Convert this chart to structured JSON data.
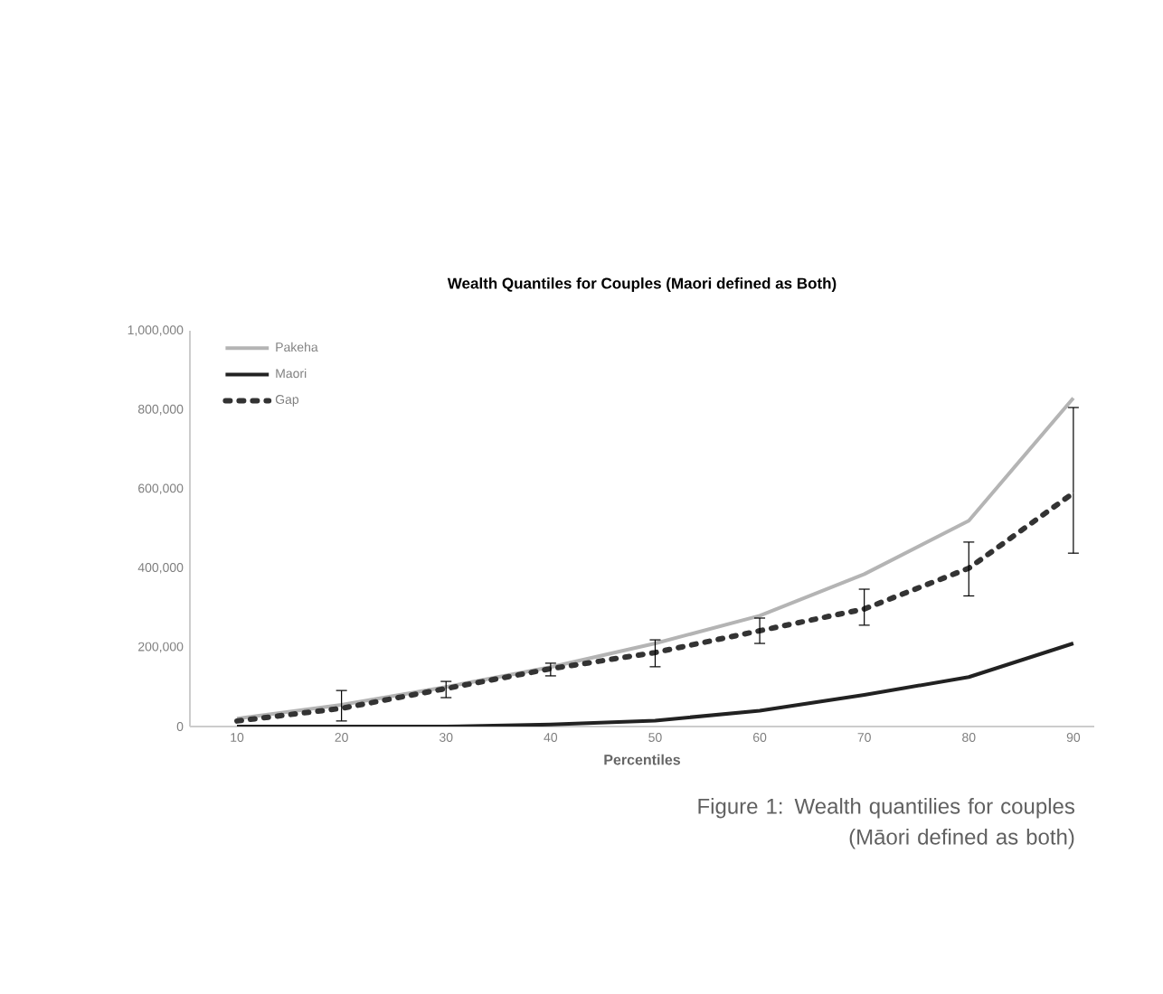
{
  "chart_data": {
    "type": "line",
    "title": "Wealth Quantiles for Couples (Maori defined as Both)",
    "xlabel": "Percentiles",
    "categories": [
      "10",
      "20",
      "30",
      "40",
      "50",
      "60",
      "70",
      "80",
      "90"
    ],
    "ylim": [
      0,
      1000000
    ],
    "yticks": [
      {
        "value": 0,
        "label": "0"
      },
      {
        "value": 200000,
        "label": "200,000"
      },
      {
        "value": 400000,
        "label": "400,000"
      },
      {
        "value": 600000,
        "label": "600,000"
      },
      {
        "value": 800000,
        "label": "800,000"
      },
      {
        "value": 1000000,
        "label": "1,000,000"
      }
    ],
    "grid": false,
    "legend": "top left",
    "series": [
      {
        "name": "Pakeha",
        "color": "#b4b4b4",
        "line_style": "solid",
        "values": [
          20000,
          55000,
          100000,
          150000,
          210000,
          280000,
          385000,
          520000,
          830000
        ]
      },
      {
        "name": "Maori",
        "color": "#222222",
        "line_style": "solid",
        "values": [
          0,
          0,
          0,
          5000,
          15000,
          40000,
          80000,
          125000,
          210000
        ]
      },
      {
        "name": "Gap",
        "color": "#333333",
        "line_style": "dotted",
        "values": [
          14000,
          46000,
          96000,
          146000,
          187000,
          242000,
          297000,
          400000,
          590000
        ],
        "errors": [
          null,
          [
            14000,
            91000
          ],
          [
            73000,
            114000
          ],
          [
            128000,
            160000
          ],
          [
            151000,
            219000
          ],
          [
            210000,
            274000
          ],
          [
            256000,
            347000
          ],
          [
            330000,
            466000
          ],
          [
            438000,
            806000
          ]
        ]
      }
    ],
    "annotations": [
      "Figure 1: Wealth quantilies for couples\n(Māori defined as both)"
    ]
  }
}
